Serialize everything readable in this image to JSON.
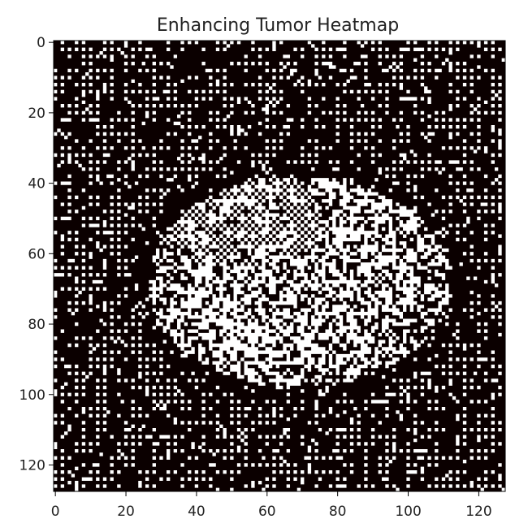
{
  "chart_data": {
    "type": "heatmap",
    "title": "Enhancing Tumor Heatmap",
    "xlabel": "",
    "ylabel": "",
    "grid_size": [
      128,
      128
    ],
    "xlim": [
      -0.5,
      127.5
    ],
    "ylim": [
      127.5,
      -0.5
    ],
    "xticks": [
      0,
      20,
      40,
      60,
      80,
      100,
      120
    ],
    "yticks": [
      0,
      20,
      40,
      60,
      80,
      100,
      120
    ],
    "xtick_labels": [
      "0",
      "20",
      "40",
      "60",
      "80",
      "100",
      "120"
    ],
    "ytick_labels": [
      "0",
      "20",
      "40",
      "60",
      "80",
      "100",
      "120"
    ],
    "value_range": [
      0,
      1
    ],
    "colormap": "hot",
    "colors": {
      "low": "#0b0000",
      "high": "#ffffff"
    },
    "grid": false,
    "pattern": {
      "background_dot_density": 0.24,
      "tumor_region": {
        "center_col": 69,
        "center_row": 68,
        "radius_cols": 43,
        "radius_rows": 30,
        "dense_core_center": [
          54,
          50
        ],
        "fill_density": 0.62
      }
    }
  }
}
